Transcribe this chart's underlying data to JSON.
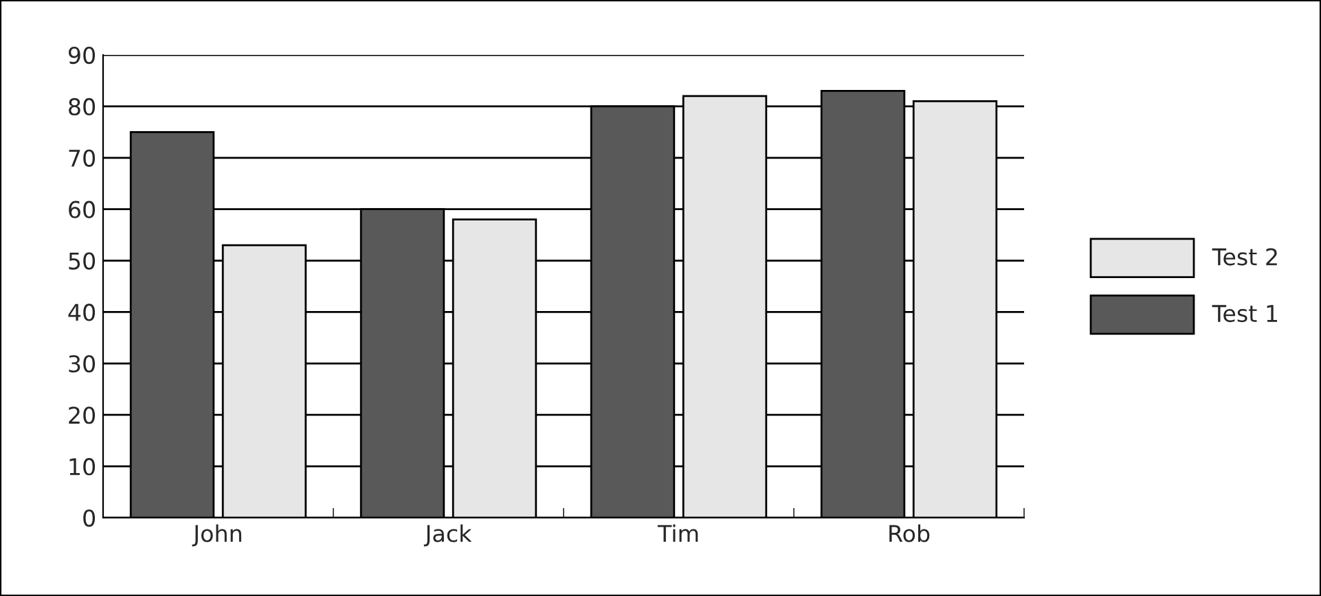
{
  "chart_data": {
    "type": "bar",
    "categories": [
      "John",
      "Jack",
      "Tim",
      "Rob"
    ],
    "series": [
      {
        "name": "Test 1",
        "color": "#595959",
        "values": [
          75,
          60,
          80,
          83
        ]
      },
      {
        "name": "Test 2",
        "color": "#e6e6e6",
        "values": [
          53,
          58,
          82,
          81
        ]
      }
    ],
    "ylim": [
      0,
      90
    ],
    "yticks": [
      0,
      10,
      20,
      30,
      40,
      50,
      60,
      70,
      80,
      90
    ],
    "grid": "y",
    "legend": "right"
  }
}
